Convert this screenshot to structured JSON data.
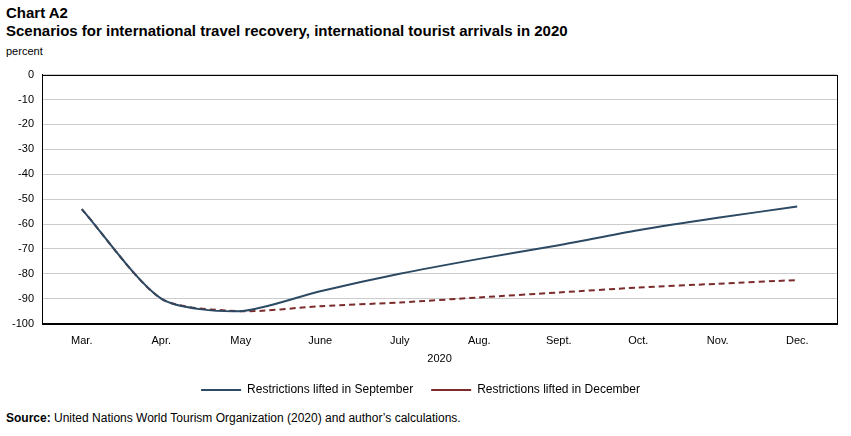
{
  "chart_data": {
    "type": "line",
    "title": "Chart A2",
    "subtitle": "Scenarios for international travel recovery, international tourist arrivals in 2020",
    "y_label": "percent",
    "x_label": "2020",
    "categories": [
      "Mar.",
      "Apr.",
      "May",
      "June",
      "July",
      "Aug.",
      "Sept.",
      "Oct.",
      "Nov.",
      "Dec."
    ],
    "series": [
      {
        "name": "Restrictions lifted in September",
        "color": "#2c4a63",
        "line_style": "solid",
        "values": [
          -54,
          -90,
          -95,
          -87,
          -80,
          -74,
          -68.5,
          -62.5,
          -57.5,
          -53
        ]
      },
      {
        "name": "Restrictions lifted in December",
        "color": "#7b2b2b",
        "line_style": "dashed",
        "values": [
          -54,
          -90,
          -95,
          -93,
          -91.5,
          -89.5,
          -87.5,
          -85.5,
          -84,
          -82.5
        ]
      }
    ],
    "ylim": [
      -100,
      0
    ],
    "yticks": [
      -100,
      -90,
      -80,
      -70,
      -60,
      -50,
      -40,
      -30,
      -20,
      -10,
      0
    ],
    "grid": true,
    "legend": "bottom",
    "note_label": "Source:",
    "note": "United Nations World Tourism Organization (2020) and author’s calculations."
  }
}
